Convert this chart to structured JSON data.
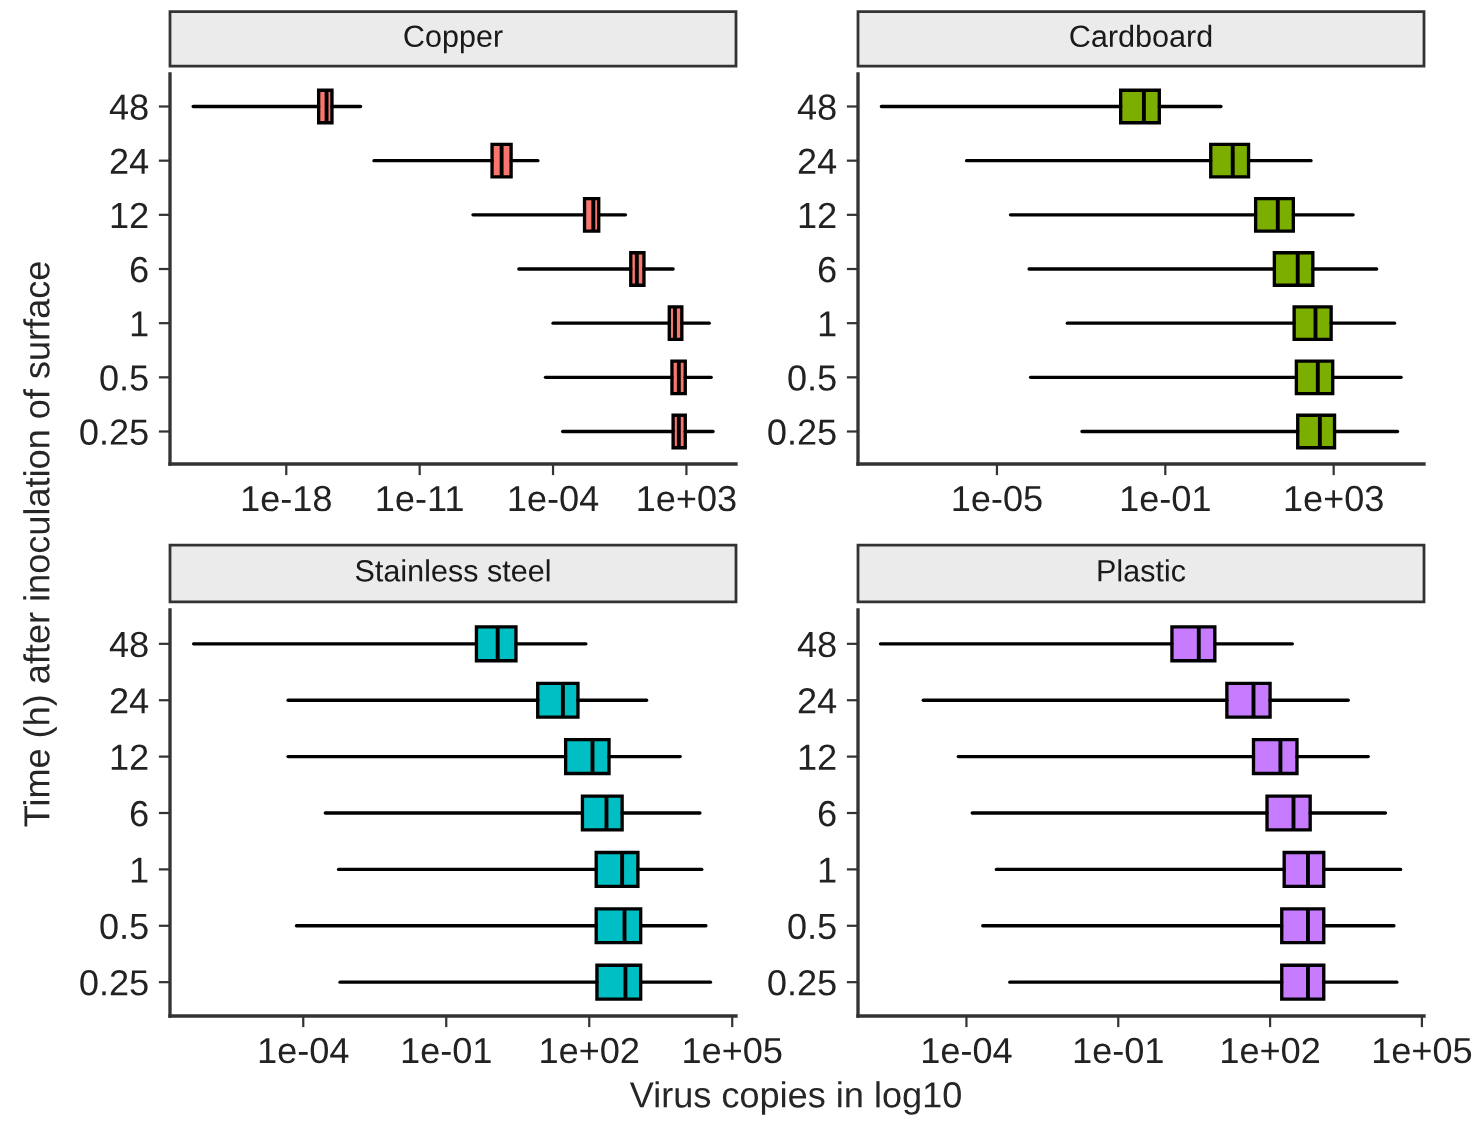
{
  "chart_data": [
    {
      "type": "box",
      "title": "Copper",
      "orientation": "horizontal",
      "log": "x",
      "grid": false,
      "color": "#f8766d",
      "categories": [
        "48",
        "24",
        "12",
        "6",
        "1",
        "0.5",
        "0.25"
      ],
      "xlim": [
        7.9e-25,
        400000.0
      ],
      "xticks": [
        {
          "value": 1e-18,
          "label": "1e-18"
        },
        {
          "value": 1e-11,
          "label": "1e-11"
        },
        {
          "value": 0.0001,
          "label": "1e-04"
        },
        {
          "value": 1000.0,
          "label": "1e+03"
        }
      ],
      "boxes": [
        {
          "low": 1.3e-23,
          "q1": 5e-17,
          "median": 1.3e-16,
          "q3": 2.5e-16,
          "high": 7.9e-15
        },
        {
          "low": 4e-14,
          "q1": 6.3e-08,
          "median": 2e-07,
          "q3": 6.3e-07,
          "high": 1.6e-05
        },
        {
          "low": 6.3e-09,
          "q1": 0.0045,
          "median": 0.013,
          "q3": 0.025,
          "high": 0.63
        },
        {
          "low": 1.6e-06,
          "q1": 1.2,
          "median": 2.5,
          "q3": 5.9,
          "high": 200
        },
        {
          "low": 0.0001,
          "q1": 126,
          "median": 250,
          "q3": 575,
          "high": 15800
        },
        {
          "low": 4e-05,
          "q1": 174,
          "median": 400,
          "q3": 870,
          "high": 20000
        },
        {
          "low": 0.00032,
          "q1": 200,
          "median": 400,
          "q3": 870,
          "high": 25000
        }
      ]
    },
    {
      "type": "box",
      "title": "Cardboard",
      "orientation": "horizontal",
      "log": "x",
      "grid": false,
      "color": "#7cae00",
      "categories": [
        "48",
        "24",
        "12",
        "6",
        "1",
        "0.5",
        "0.25"
      ],
      "xlim": [
        5e-09,
        140000.0
      ],
      "xticks": [
        {
          "value": 1e-05,
          "label": "1e-05"
        },
        {
          "value": 0.1,
          "label": "1e-01"
        },
        {
          "value": 1000.0,
          "label": "1e+03"
        }
      ],
      "boxes": [
        {
          "low": 1.8e-08,
          "q1": 0.0087,
          "median": 0.031,
          "q3": 0.072,
          "high": 2.1
        },
        {
          "low": 1.9e-06,
          "q1": 1.2,
          "median": 4,
          "q3": 9.5,
          "high": 290
        },
        {
          "low": 2.1e-05,
          "q1": 14,
          "median": 47,
          "q3": 110,
          "high": 2900
        },
        {
          "low": 5.8e-05,
          "q1": 39,
          "median": 140,
          "q3": 320,
          "high": 10500
        },
        {
          "low": 0.00047,
          "q1": 115,
          "median": 370,
          "q3": 870,
          "high": 28000
        },
        {
          "low": 6.3e-05,
          "q1": 130,
          "median": 420,
          "q3": 950,
          "high": 40000
        },
        {
          "low": 0.00105,
          "q1": 140,
          "median": 470,
          "q3": 1050,
          "high": 33000
        }
      ]
    },
    {
      "type": "box",
      "title": "Stainless steel",
      "orientation": "horizontal",
      "log": "x",
      "grid": false,
      "color": "#00bfc4",
      "ylabel": "Time (h) after inoculation of surface",
      "categories": [
        "48",
        "24",
        "12",
        "6",
        "1",
        "0.5",
        "0.25"
      ],
      "xlim": [
        1.6e-07,
        120000.0
      ],
      "xticks": [
        {
          "value": 0.0001,
          "label": "1e-04"
        },
        {
          "value": 0.1,
          "label": "1e-01"
        },
        {
          "value": 100,
          "label": "1e+02"
        },
        {
          "value": 100000.0,
          "label": "1e+05"
        }
      ],
      "boxes": [
        {
          "low": 5e-07,
          "q1": 0.43,
          "median": 1.2,
          "q3": 2.9,
          "high": 85
        },
        {
          "low": 4.8e-05,
          "q1": 8.3,
          "median": 28,
          "q3": 58,
          "high": 1600
        },
        {
          "low": 4.8e-05,
          "q1": 32,
          "median": 117,
          "q3": 260,
          "high": 8100
        },
        {
          "low": 0.00029,
          "q1": 72,
          "median": 230,
          "q3": 490,
          "high": 21000
        },
        {
          "low": 0.00055,
          "q1": 140,
          "median": 490,
          "q3": 1050,
          "high": 23000
        },
        {
          "low": 7.2e-05,
          "q1": 140,
          "median": 550,
          "q3": 1200,
          "high": 28000
        },
        {
          "low": 0.00059,
          "q1": 145,
          "median": 575,
          "q3": 1200,
          "high": 35000
        }
      ]
    },
    {
      "type": "box",
      "title": "Plastic",
      "orientation": "horizontal",
      "log": "x",
      "grid": false,
      "color": "#c77cff",
      "xlabel": "Virus copies in log10",
      "categories": [
        "48",
        "24",
        "12",
        "6",
        "1",
        "0.5",
        "0.25"
      ],
      "xlim": [
        7.2e-07,
        110000.0
      ],
      "xticks": [
        {
          "value": 0.0001,
          "label": "1e-04"
        },
        {
          "value": 0.1,
          "label": "1e-01"
        },
        {
          "value": 100,
          "label": "1e+02"
        },
        {
          "value": 100000.0,
          "label": "1e+05"
        }
      ],
      "boxes": [
        {
          "low": 2e-06,
          "q1": 1.15,
          "median": 3.9,
          "q3": 8.1,
          "high": 275
        },
        {
          "low": 1.4e-05,
          "q1": 14,
          "median": 47,
          "q3": 100,
          "high": 3500
        },
        {
          "low": 6.9e-05,
          "q1": 47,
          "median": 160,
          "q3": 340,
          "high": 8700
        },
        {
          "low": 0.00013,
          "q1": 87,
          "median": 290,
          "q3": 620,
          "high": 19000
        },
        {
          "low": 0.00039,
          "q1": 190,
          "median": 560,
          "q3": 1150,
          "high": 38000
        },
        {
          "low": 0.00021,
          "q1": 170,
          "median": 560,
          "q3": 1150,
          "high": 28000
        },
        {
          "low": 0.00072,
          "q1": 170,
          "median": 560,
          "q3": 1150,
          "high": 32000
        }
      ]
    }
  ]
}
